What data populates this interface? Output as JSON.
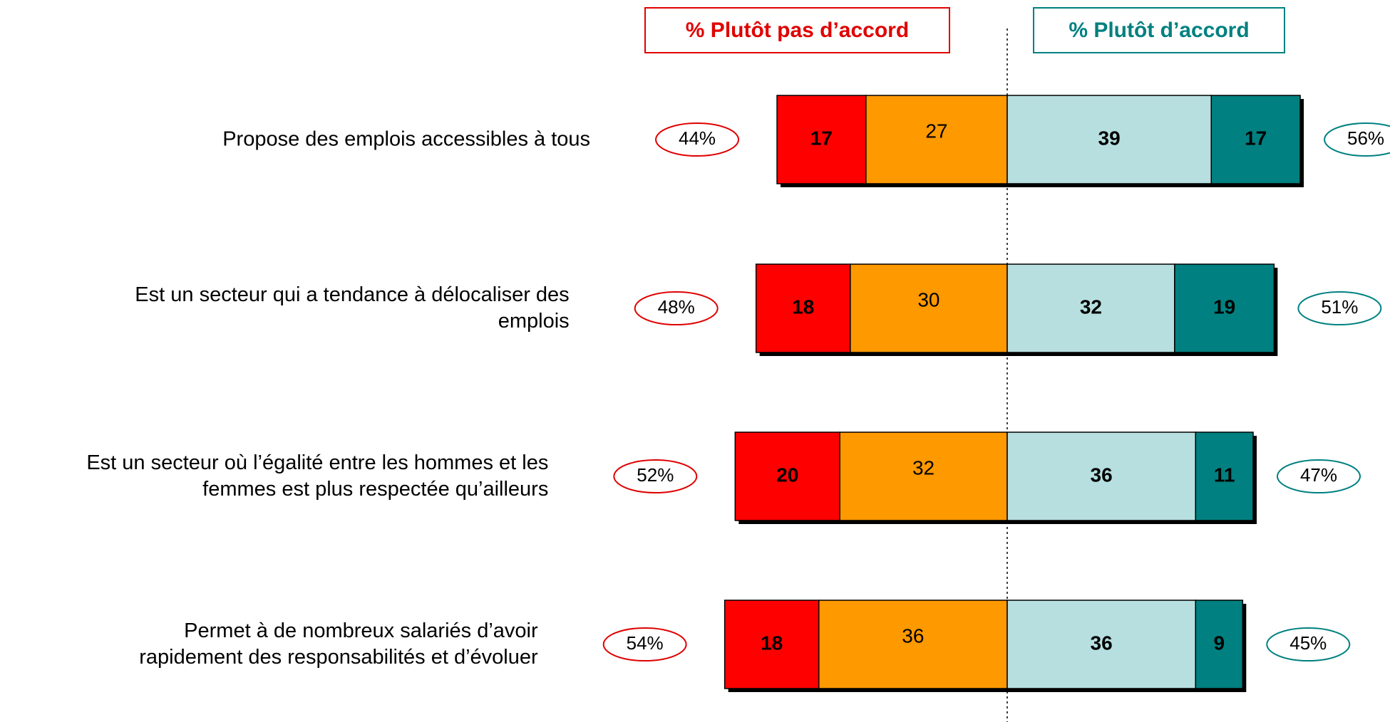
{
  "chart_data": {
    "type": "diverging_bar",
    "headers": [
      "% Plutôt pas d’accord",
      "% Plutôt d’accord"
    ],
    "categories": [
      "Propose des emplois accessibles à tous",
      "Est un secteur qui a tendance à délocaliser des\nemplois",
      "Est un secteur où l’égalité entre les hommes et les\nfemmes est plus respectée qu’ailleurs",
      "Permet à de nombreux salariés d’avoir\nrapidement des responsabilités et d’évoluer"
    ],
    "series": [
      {
        "color": "#ff0000",
        "values": [
          17,
          18,
          20,
          18
        ]
      },
      {
        "color": "#ff9900",
        "values": [
          27,
          30,
          32,
          36
        ]
      },
      {
        "color": "#b7dfe0",
        "values": [
          39,
          32,
          36,
          36
        ]
      },
      {
        "color": "#008080",
        "values": [
          17,
          19,
          11,
          9
        ]
      }
    ],
    "disagree_totals": {
      "color": "#e00000",
      "values": [
        44,
        48,
        52,
        54
      ],
      "value_labels": [
        "44%",
        "48%",
        "52%",
        "54%"
      ]
    },
    "agree_totals": {
      "color": "#008080",
      "values": [
        56,
        51,
        47,
        45
      ],
      "value_labels": [
        "56%",
        "51%",
        "47%",
        "45%"
      ]
    }
  }
}
